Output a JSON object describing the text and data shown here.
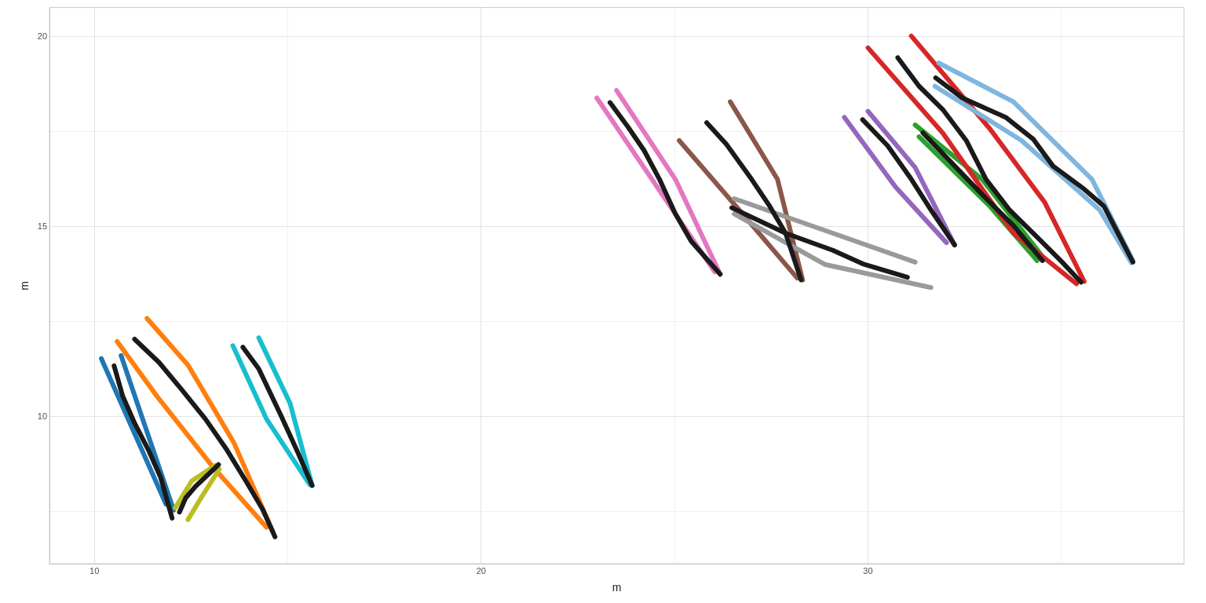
{
  "chart_data": {
    "type": "line",
    "xlabel": "m",
    "ylabel": "m",
    "xlim": [
      8.84,
      38.17
    ],
    "ylim": [
      6.13,
      20.77
    ],
    "xticks": [
      10,
      {
        "value": 15,
        "label": null
      },
      20,
      {
        "value": 25,
        "label": null
      },
      30,
      {
        "value": 35,
        "label": null
      }
    ],
    "yticks": [
      {
        "value": 7.5,
        "label": null
      },
      10,
      {
        "value": 12.5,
        "label": null
      },
      15,
      {
        "value": 17.5,
        "label": null
      },
      20
    ],
    "grid": true,
    "legend": false,
    "marker": "none",
    "line_style": "solid",
    "series": [
      {
        "color": "#1f77b4",
        "x": [
          10.18,
          11.85
        ],
        "values": [
          11.53,
          7.7
        ]
      },
      {
        "color": "#1f77b4",
        "x": [
          10.69,
          12.05
        ],
        "values": [
          11.61,
          7.54
        ]
      },
      {
        "color": "#ff7f0e",
        "x": [
          10.59,
          11.61,
          13.03,
          14.45
        ],
        "values": [
          11.98,
          10.55,
          8.72,
          7.09
        ]
      },
      {
        "color": "#ff7f0e",
        "x": [
          11.36,
          12.42,
          13.6,
          14.61
        ],
        "values": [
          12.59,
          11.36,
          9.33,
          6.99
        ]
      },
      {
        "color": "#bcbd22",
        "x": [
          12.09,
          12.52,
          13.13
        ],
        "values": [
          7.6,
          8.31,
          8.72
        ]
      },
      {
        "color": "#bcbd22",
        "x": [
          12.42,
          12.78,
          13.23
        ],
        "values": [
          7.29,
          7.9,
          8.62
        ]
      },
      {
        "color": "#17becf",
        "x": [
          13.58,
          14.45,
          15.57
        ],
        "values": [
          11.87,
          9.94,
          8.21
        ]
      },
      {
        "color": "#17becf",
        "x": [
          14.25,
          15.06,
          15.63
        ],
        "values": [
          12.08,
          10.35,
          8.19
        ]
      },
      {
        "color": "#e377c2",
        "x": [
          22.99,
          24.82,
          26.04
        ],
        "values": [
          18.39,
          15.64,
          13.81
        ]
      },
      {
        "color": "#e377c2",
        "x": [
          23.5,
          25.02,
          26.18
        ],
        "values": [
          18.59,
          16.25,
          13.75
        ]
      },
      {
        "color": "#8c564b",
        "x": [
          25.12,
          26.85,
          28.17
        ],
        "values": [
          17.27,
          15.23,
          13.65
        ]
      },
      {
        "color": "#8c564b",
        "x": [
          26.44,
          27.66,
          28.31
        ],
        "values": [
          18.29,
          16.25,
          13.6
        ]
      },
      {
        "color": "#9a9a9a",
        "x": [
          26.54,
          29.09,
          31.22
        ],
        "values": [
          15.74,
          14.83,
          14.07
        ]
      },
      {
        "color": "#9a9a9a",
        "x": [
          26.54,
          28.88,
          31.63
        ],
        "values": [
          15.34,
          14.01,
          13.4
        ]
      },
      {
        "color": "#9467bd",
        "x": [
          29.39,
          30.71,
          32.03
        ],
        "values": [
          17.88,
          16.05,
          14.58
        ]
      },
      {
        "color": "#9467bd",
        "x": [
          30.0,
          31.22,
          32.24
        ],
        "values": [
          18.04,
          16.56,
          14.52
        ]
      },
      {
        "color": "#2ca02c",
        "x": [
          31.22,
          32.95,
          34.51
        ],
        "values": [
          17.68,
          16.25,
          14.22
        ]
      },
      {
        "color": "#2ca02c",
        "x": [
          31.32,
          33.15,
          34.37
        ],
        "values": [
          17.37,
          15.54,
          14.11
        ]
      },
      {
        "color": "#d62728",
        "x": [
          30.0,
          31.93,
          33.76,
          35.39
        ],
        "values": [
          19.71,
          17.47,
          14.83,
          13.5
        ]
      },
      {
        "color": "#d62728",
        "x": [
          31.12,
          33.15,
          34.57,
          35.59
        ],
        "values": [
          20.02,
          17.58,
          15.64,
          13.56
        ]
      },
      {
        "color": "#7fb6df",
        "x": [
          31.83,
          33.76,
          35.79,
          36.85
        ],
        "values": [
          19.31,
          18.29,
          16.25,
          14.11
        ]
      },
      {
        "color": "#7fb6df",
        "x": [
          31.73,
          33.97,
          35.99,
          36.81
        ],
        "values": [
          18.7,
          17.27,
          15.44,
          14.05
        ]
      },
      {
        "color": "#1a1a1a",
        "x": [
          10.51,
          10.73,
          11.04,
          11.4,
          11.71,
          12.01
        ],
        "values": [
          11.34,
          10.55,
          9.83,
          9.12,
          8.41,
          7.33
        ]
      },
      {
        "color": "#1a1a1a",
        "x": [
          11.04,
          11.67,
          12.26,
          12.87,
          13.43,
          13.94,
          14.35,
          14.67
        ],
        "values": [
          12.04,
          11.43,
          10.71,
          9.94,
          9.12,
          8.27,
          7.56,
          6.84
        ]
      },
      {
        "color": "#1a1a1a",
        "x": [
          12.2,
          12.36,
          12.62,
          13.21
        ],
        "values": [
          7.49,
          7.86,
          8.17,
          8.74
        ]
      },
      {
        "color": "#1a1a1a",
        "x": [
          13.84,
          14.25,
          14.82,
          15.26,
          15.63
        ],
        "values": [
          11.83,
          11.26,
          10.04,
          9.06,
          8.19
        ]
      },
      {
        "color": "#1a1a1a",
        "x": [
          23.33,
          23.8,
          24.21,
          24.61,
          25.02,
          25.43,
          26.18
        ],
        "values": [
          18.27,
          17.62,
          17.01,
          16.25,
          15.34,
          14.62,
          13.75
        ]
      },
      {
        "color": "#1a1a1a",
        "x": [
          25.83,
          26.34,
          26.95,
          27.46,
          27.87,
          28.27
        ],
        "values": [
          17.74,
          17.17,
          16.31,
          15.54,
          14.83,
          13.6
        ]
      },
      {
        "color": "#1a1a1a",
        "x": [
          26.48,
          27.87,
          29.09,
          29.9,
          31.02
        ],
        "values": [
          15.5,
          14.83,
          14.38,
          14.01,
          13.67
        ]
      },
      {
        "color": "#1a1a1a",
        "x": [
          29.86,
          30.51,
          31.12,
          31.63,
          32.24
        ],
        "values": [
          17.82,
          17.13,
          16.25,
          15.44,
          14.52
        ]
      },
      {
        "color": "#1a1a1a",
        "x": [
          31.42,
          32.13,
          32.95,
          33.76,
          34.51
        ],
        "values": [
          17.47,
          16.72,
          15.85,
          15.03,
          14.11
        ]
      },
      {
        "color": "#1a1a1a",
        "x": [
          30.77,
          31.32,
          31.93,
          32.54,
          33.05,
          33.66,
          34.37,
          34.98,
          35.51
        ],
        "values": [
          19.45,
          18.7,
          18.09,
          17.27,
          16.25,
          15.44,
          14.73,
          14.11,
          13.54
        ]
      },
      {
        "color": "#1a1a1a",
        "x": [
          31.75,
          32.44,
          33.56,
          34.27,
          34.78,
          35.59,
          36.1,
          36.85
        ],
        "values": [
          18.92,
          18.39,
          17.88,
          17.31,
          16.6,
          15.99,
          15.54,
          14.07
        ]
      }
    ]
  }
}
